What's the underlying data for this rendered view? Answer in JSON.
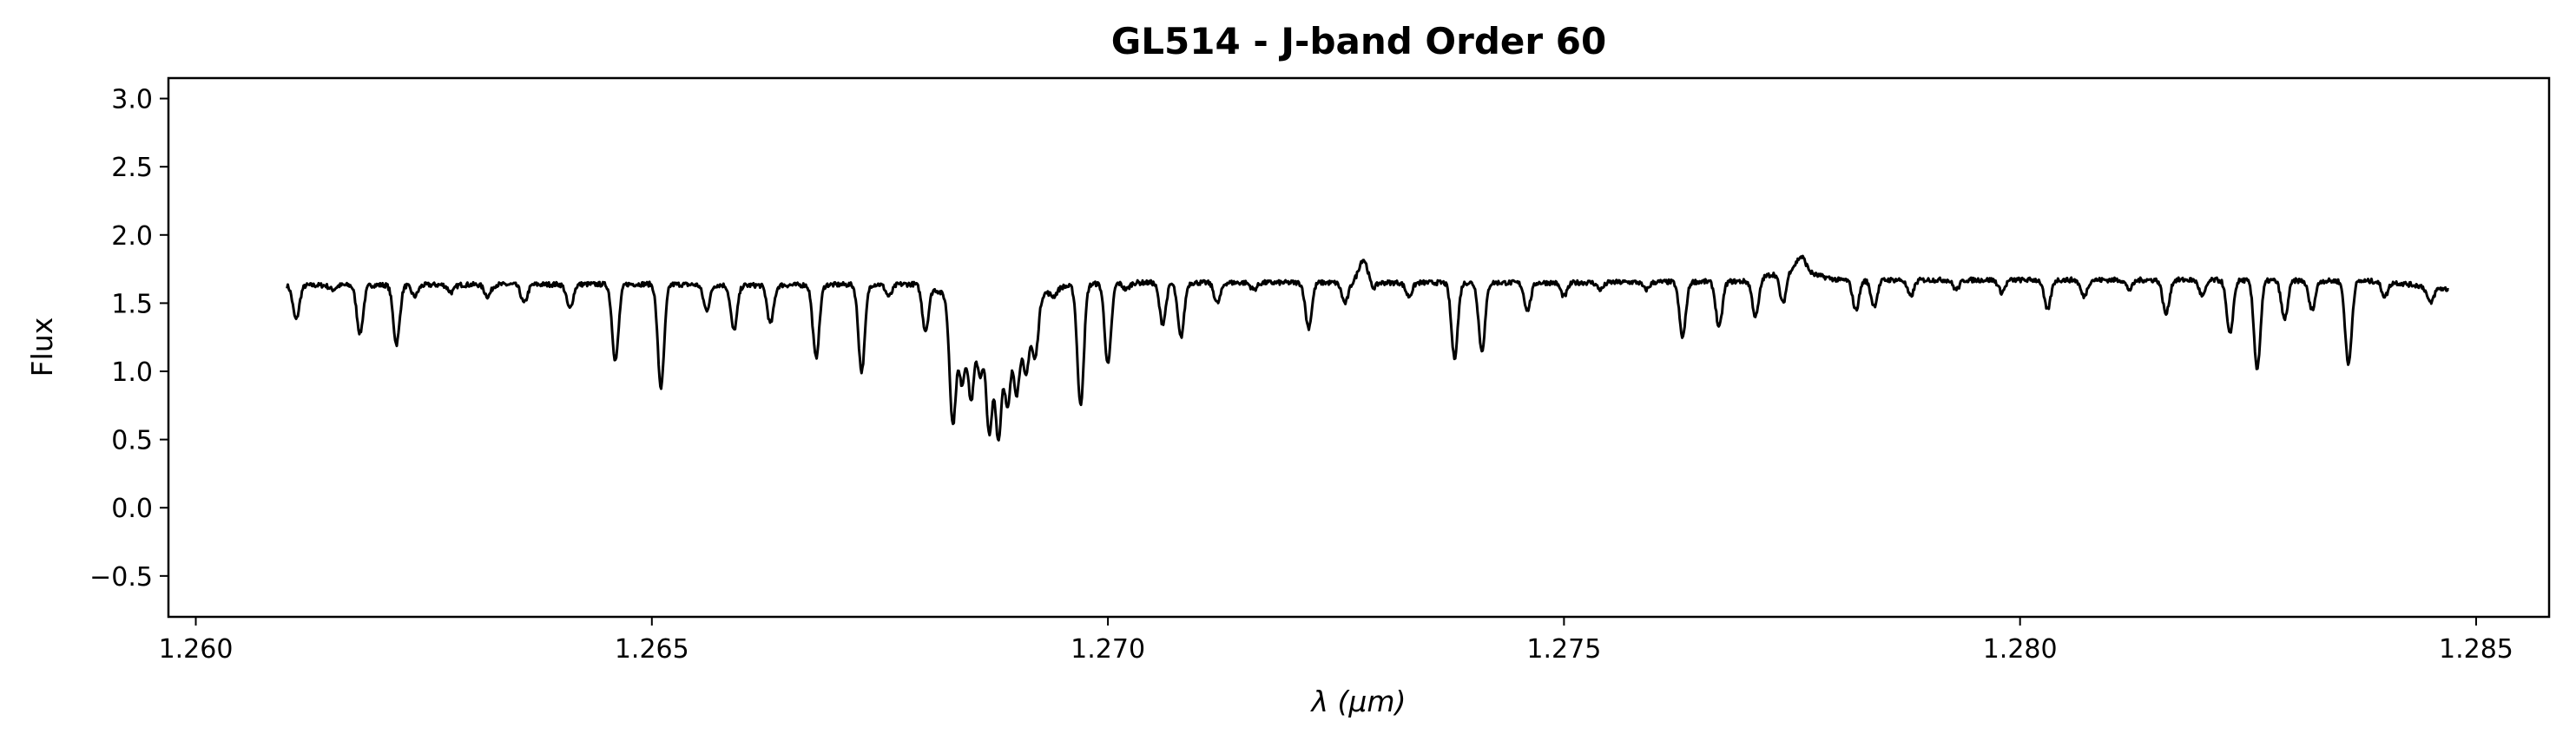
{
  "chart_data": {
    "type": "line",
    "title": "GL514 - J-band Order 60",
    "xlabel": "λ (μm)",
    "ylabel": "Flux",
    "xlim": [
      1.2597,
      1.2858
    ],
    "ylim": [
      -0.8,
      3.15
    ],
    "x_ticks": [
      1.26,
      1.265,
      1.27,
      1.275,
      1.28,
      1.285
    ],
    "x_tick_labels": [
      "1.260",
      "1.265",
      "1.270",
      "1.275",
      "1.280",
      "1.285"
    ],
    "y_ticks": [
      -0.5,
      0.0,
      0.5,
      1.0,
      1.5,
      2.0,
      2.5,
      3.0
    ],
    "y_tick_labels": [
      "−0.5",
      "0.0",
      "0.5",
      "1.0",
      "1.5",
      "2.0",
      "2.5",
      "3.0"
    ],
    "grid": false,
    "line_color": "#000000",
    "continuum": [
      [
        1.261,
        1.63
      ],
      [
        1.265,
        1.64
      ],
      [
        1.266,
        1.63
      ],
      [
        1.268,
        1.64
      ],
      [
        1.2685,
        1.45
      ],
      [
        1.269,
        1.5
      ],
      [
        1.2695,
        1.62
      ],
      [
        1.27,
        1.65
      ],
      [
        1.275,
        1.65
      ],
      [
        1.277,
        1.66
      ],
      [
        1.2775,
        1.75
      ],
      [
        1.2778,
        1.7
      ],
      [
        1.278,
        1.67
      ],
      [
        1.282,
        1.67
      ],
      [
        1.284,
        1.66
      ],
      [
        1.2847,
        1.6
      ]
    ],
    "emission_features": [
      {
        "x": 1.2728,
        "peak": 1.82
      },
      {
        "x": 1.2776,
        "peak": 1.84
      }
    ],
    "absorption_lines": [
      {
        "x": 1.2611,
        "depth": 1.38
      },
      {
        "x": 1.2615,
        "depth": 1.6
      },
      {
        "x": 1.2618,
        "depth": 1.28
      },
      {
        "x": 1.2622,
        "depth": 1.2
      },
      {
        "x": 1.2624,
        "depth": 1.55
      },
      {
        "x": 1.2628,
        "depth": 1.58
      },
      {
        "x": 1.2632,
        "depth": 1.55
      },
      {
        "x": 1.2636,
        "depth": 1.5
      },
      {
        "x": 1.2641,
        "depth": 1.46
      },
      {
        "x": 1.2646,
        "depth": 1.08
      },
      {
        "x": 1.2651,
        "depth": 0.88
      },
      {
        "x": 1.2656,
        "depth": 1.45
      },
      {
        "x": 1.2659,
        "depth": 1.3
      },
      {
        "x": 1.2663,
        "depth": 1.35
      },
      {
        "x": 1.2668,
        "depth": 1.1
      },
      {
        "x": 1.2673,
        "depth": 1.0
      },
      {
        "x": 1.2676,
        "depth": 1.55
      },
      {
        "x": 1.268,
        "depth": 1.3
      },
      {
        "x": 1.2684,
        "depth": 0.93
      },
      {
        "x": 1.2686,
        "depth": 1.5
      },
      {
        "x": 1.2691,
        "depth": 0.98
      },
      {
        "x": 1.2694,
        "depth": 1.55
      },
      {
        "x": 1.2697,
        "depth": 0.75
      },
      {
        "x": 1.27,
        "depth": 1.05
      },
      {
        "x": 1.2702,
        "depth": 1.6
      },
      {
        "x": 1.2706,
        "depth": 1.35
      },
      {
        "x": 1.2708,
        "depth": 1.25
      },
      {
        "x": 1.2712,
        "depth": 1.5
      },
      {
        "x": 1.2716,
        "depth": 1.6
      },
      {
        "x": 1.2722,
        "depth": 1.32
      },
      {
        "x": 1.2726,
        "depth": 1.5
      },
      {
        "x": 1.2729,
        "depth": 1.6
      },
      {
        "x": 1.2733,
        "depth": 1.55
      },
      {
        "x": 1.2738,
        "depth": 1.1
      },
      {
        "x": 1.2741,
        "depth": 1.15
      },
      {
        "x": 1.2746,
        "depth": 1.45
      },
      {
        "x": 1.275,
        "depth": 1.55
      },
      {
        "x": 1.2754,
        "depth": 1.6
      },
      {
        "x": 1.2759,
        "depth": 1.6
      },
      {
        "x": 1.2763,
        "depth": 1.25
      },
      {
        "x": 1.2767,
        "depth": 1.32
      },
      {
        "x": 1.2771,
        "depth": 1.4
      },
      {
        "x": 1.2774,
        "depth": 1.5
      },
      {
        "x": 1.2782,
        "depth": 1.45
      },
      {
        "x": 1.2784,
        "depth": 1.48
      },
      {
        "x": 1.2788,
        "depth": 1.55
      },
      {
        "x": 1.2793,
        "depth": 1.6
      },
      {
        "x": 1.2798,
        "depth": 1.58
      },
      {
        "x": 1.2803,
        "depth": 1.45
      },
      {
        "x": 1.2807,
        "depth": 1.55
      },
      {
        "x": 1.2812,
        "depth": 1.6
      },
      {
        "x": 1.2816,
        "depth": 1.42
      },
      {
        "x": 1.282,
        "depth": 1.55
      },
      {
        "x": 1.2823,
        "depth": 1.27
      },
      {
        "x": 1.2826,
        "depth": 1.02
      },
      {
        "x": 1.2829,
        "depth": 1.38
      },
      {
        "x": 1.2832,
        "depth": 1.45
      },
      {
        "x": 1.2836,
        "depth": 1.05
      },
      {
        "x": 1.284,
        "depth": 1.55
      },
      {
        "x": 1.2845,
        "depth": 1.5
      },
      {
        "x": 1.2683,
        "depth": 0.62
      },
      {
        "x": 1.2687,
        "depth": 0.55
      },
      {
        "x": 1.2688,
        "depth": 0.52
      },
      {
        "x": 1.2689,
        "depth": 0.75
      },
      {
        "x": 1.269,
        "depth": 0.85
      },
      {
        "x": 1.2692,
        "depth": 1.1
      },
      {
        "x": 1.2685,
        "depth": 0.8
      },
      {
        "x": 1.2686,
        "depth": 0.95
      }
    ]
  }
}
